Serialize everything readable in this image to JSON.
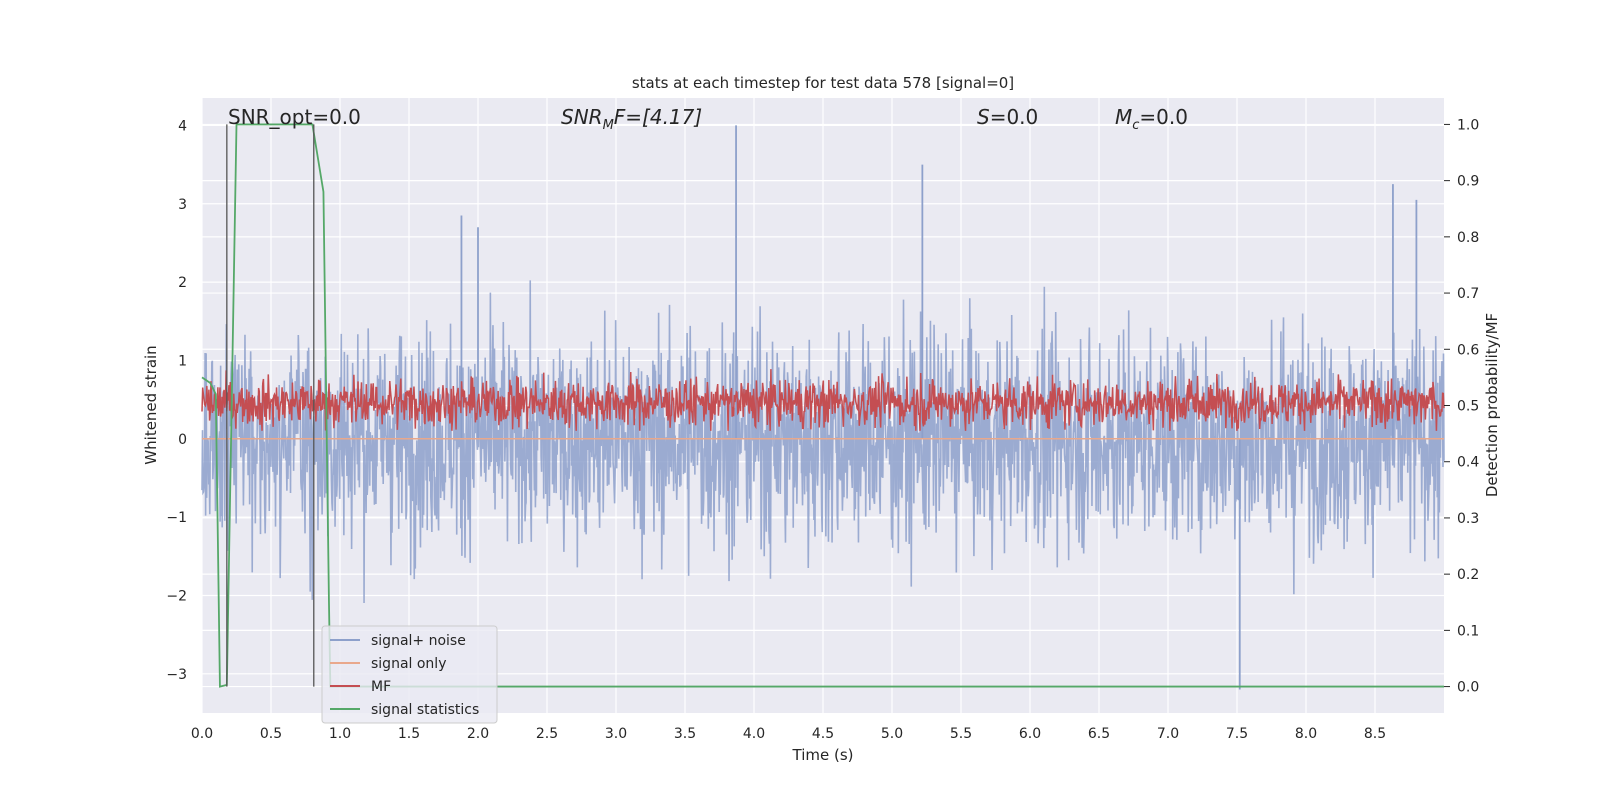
{
  "chart_data": {
    "type": "line",
    "title": "stats at each timestep for test data 578 [signal=0]",
    "xlabel": "Time (s)",
    "ylabel": "Whitened strain",
    "y2label": "Detection probability/MF",
    "xlim": [
      0.0,
      9.0
    ],
    "ylim": [
      -3.5,
      4.35
    ],
    "y2lim": [
      -0.047,
      1.047
    ],
    "xticks": [
      "0.0",
      "0.5",
      "1.0",
      "1.5",
      "2.0",
      "2.5",
      "3.0",
      "3.5",
      "4.0",
      "4.5",
      "5.0",
      "5.5",
      "6.0",
      "6.5",
      "7.0",
      "7.5",
      "8.0",
      "8.5"
    ],
    "yticks": [
      "4",
      "3",
      "2",
      "1",
      "0",
      "−1",
      "−2",
      "−3"
    ],
    "y2ticks": [
      "1.0",
      "0.9",
      "0.8",
      "0.7",
      "0.6",
      "0.5",
      "0.4",
      "0.3",
      "0.2",
      "0.1",
      "0.0"
    ],
    "grid": true,
    "legend_position": "lower-left",
    "annotations": {
      "snr_opt": "SNR_opt=0.0",
      "snr_mf_base": "SNR",
      "snr_mf_sub": "M",
      "snr_mf_rest": "F=[4.17]",
      "s_label": "S",
      "s_value": "=0.0",
      "mc_base": "M",
      "mc_sub": "c",
      "mc_value": "=0.0"
    },
    "series": [
      {
        "name": "signal+ noise",
        "color": "#8da0cb",
        "axis": "left",
        "description": "whitened noise, ~N(0, 0.9), peaks up to ~4.0 near t=3.87",
        "peaks": [
          [
            3.87,
            4.0
          ],
          [
            5.22,
            3.5
          ],
          [
            8.63,
            3.25
          ],
          [
            8.8,
            3.05
          ],
          [
            7.52,
            -3.2
          ],
          [
            1.88,
            2.85
          ],
          [
            2.0,
            2.7
          ]
        ]
      },
      {
        "name": "signal only",
        "color": "#e9a88c",
        "axis": "left",
        "x": [
          0.0,
          9.0
        ],
        "y": [
          0.0,
          0.0
        ]
      },
      {
        "name": "MF",
        "color": "#c44e52",
        "axis": "right",
        "description": "matched filter output fluctuating between ~0.45 and ~0.56"
      },
      {
        "name": "signal statistics",
        "color": "#55a868",
        "axis": "right",
        "x": [
          0.0,
          0.06,
          0.1,
          0.13,
          0.18,
          0.25,
          0.8,
          0.88,
          0.92,
          0.93,
          9.0
        ],
        "y": [
          0.55,
          0.54,
          0.52,
          0.0,
          0.003,
          1.0,
          1.0,
          0.88,
          0.15,
          0.0,
          0.0
        ]
      }
    ],
    "vertical_lines": [
      0.18,
      0.81
    ]
  },
  "legend": {
    "items": [
      {
        "label": "signal+ noise",
        "color": "#8da0cb"
      },
      {
        "label": "signal only",
        "color": "#e9a88c"
      },
      {
        "label": "MF",
        "color": "#c44e52"
      },
      {
        "label": "signal statistics",
        "color": "#55a868"
      }
    ]
  }
}
